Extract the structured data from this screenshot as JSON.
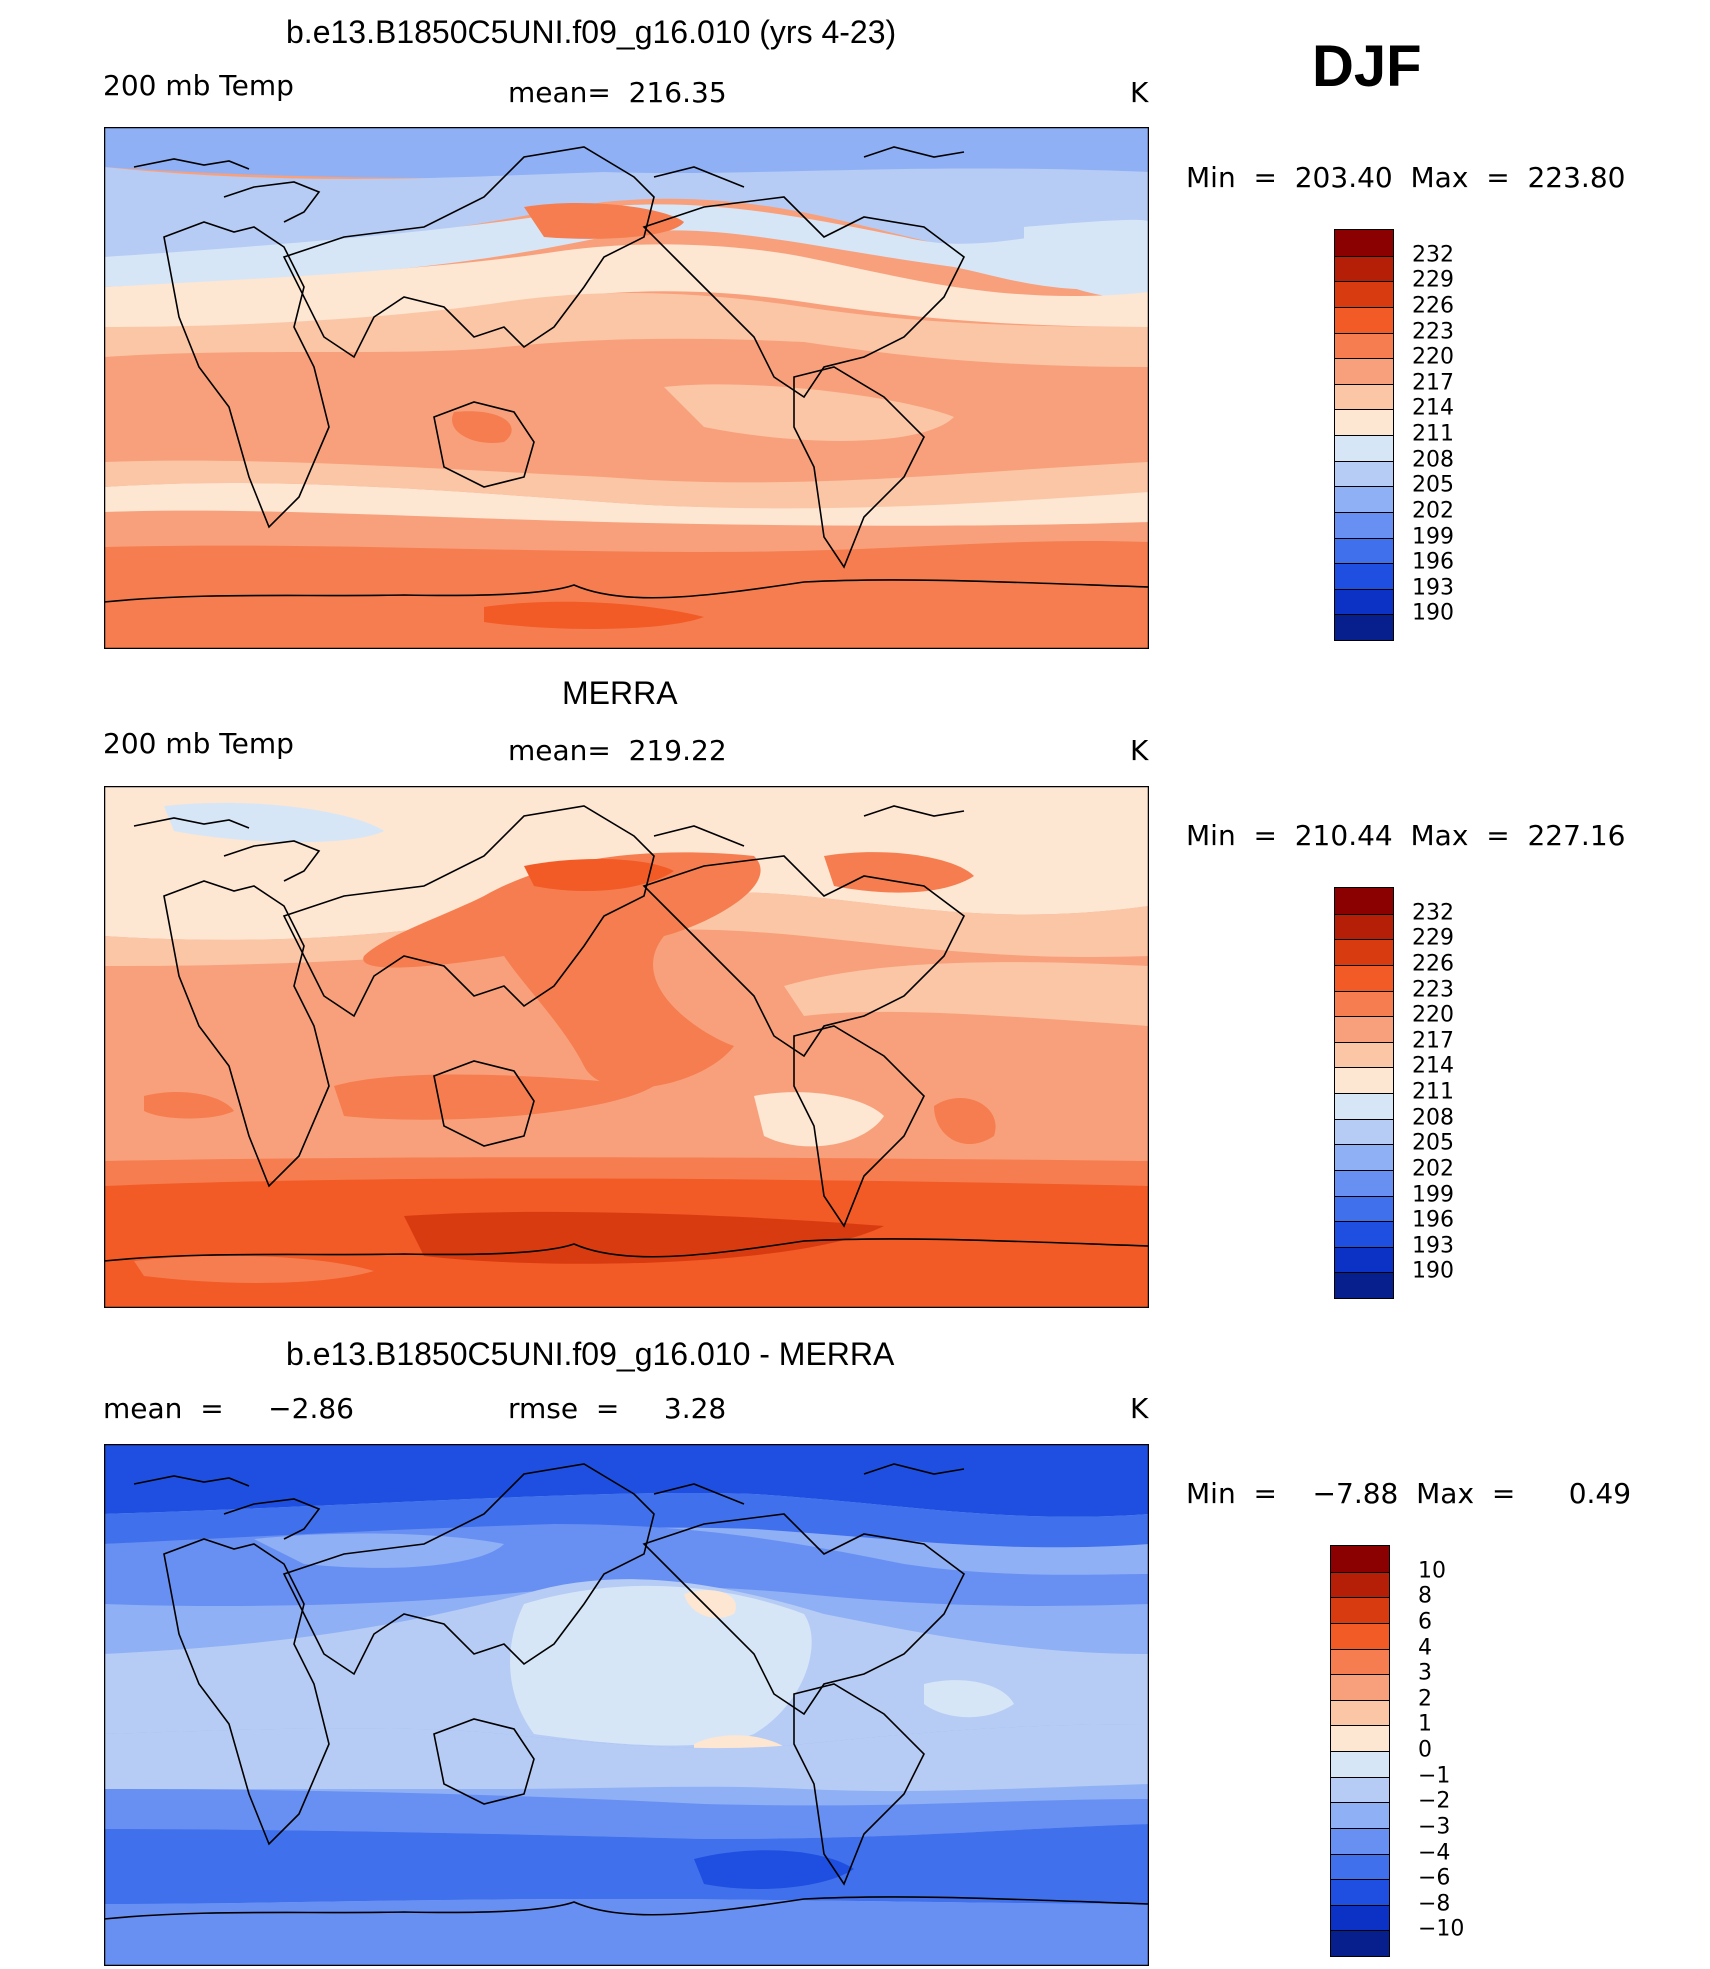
{
  "season": "DJF",
  "panels": [
    {
      "title": "b.e13.B1850C5UNI.f09_g16.010 (yrs 4-23)",
      "field_label": "200 mb Temp",
      "stat_label": "mean=  216.35",
      "units": "K",
      "minmax": "Min  =  203.40  Max  =  223.80"
    },
    {
      "title": "MERRA",
      "field_label": "200 mb Temp",
      "stat_label": "mean=  219.22",
      "units": "K",
      "minmax": "Min  =  210.44  Max  =  227.16"
    },
    {
      "title": "b.e13.B1850C5UNI.f09_g16.010 - MERRA",
      "field_label": "mean  =     −2.86",
      "stat_label": "rmse  =     3.28",
      "units": "K",
      "minmax": "Min  =    −7.88  Max  =      0.49"
    }
  ],
  "colorbars": {
    "temperature": {
      "labels": [
        "232",
        "229",
        "226",
        "223",
        "220",
        "217",
        "214",
        "211",
        "208",
        "205",
        "202",
        "199",
        "196",
        "193",
        "190"
      ],
      "colors": [
        "#8b0000",
        "#b51f08",
        "#d93b10",
        "#f25a26",
        "#f57d4f",
        "#f8a07b",
        "#fbc6a6",
        "#fde6d2",
        "#d6e6f7",
        "#b6ccf5",
        "#8fb0f5",
        "#6890f2",
        "#4070ec",
        "#1f4fe0",
        "#0b32c4",
        "#071f8c"
      ]
    },
    "difference": {
      "labels": [
        "10",
        "8",
        "6",
        "4",
        "3",
        "2",
        "1",
        "0",
        "−1",
        "−2",
        "−3",
        "−4",
        "−6",
        "−8",
        "−10"
      ],
      "colors": [
        "#8b0000",
        "#b51f08",
        "#d93b10",
        "#f25a26",
        "#f57d4f",
        "#f8a07b",
        "#fbc6a6",
        "#fde6d2",
        "#d6e6f7",
        "#b6ccf5",
        "#8fb0f5",
        "#6890f2",
        "#4070ec",
        "#1f4fe0",
        "#0b32c4",
        "#071f8c"
      ]
    }
  }
}
